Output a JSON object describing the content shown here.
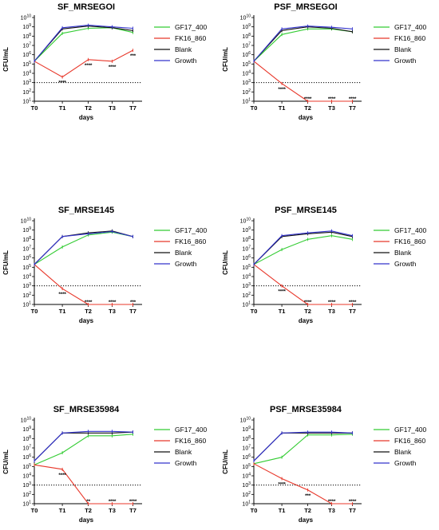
{
  "chart_data": [
    {
      "type": "line",
      "title": "SF_MRSEGOI",
      "xlabel": "days",
      "ylabel": "CFU/mL",
      "categories": [
        "T0",
        "T1",
        "T2",
        "T3",
        "T7"
      ],
      "y_scale": "log",
      "ylim": [
        10,
        10000000000
      ],
      "y_ticks": [
        10,
        100,
        1000,
        10000,
        100000,
        1000000,
        10000000,
        100000000,
        1000000000,
        10000000000
      ],
      "y_tick_exponents": [
        "1",
        "2",
        "3",
        "4",
        "5",
        "6",
        "7",
        "8",
        "9",
        "10"
      ],
      "threshold_line": 1000,
      "series": [
        {
          "name": "GF17_400",
          "color": "#33cc33",
          "values": [
            200000,
            200000000,
            700000000,
            800000000,
            250000000
          ]
        },
        {
          "name": "FK16_860",
          "color": "#e8372a",
          "values": [
            200000,
            4000,
            300000,
            200000,
            3000000
          ]
        },
        {
          "name": "Blank",
          "color": "#111111",
          "values": [
            200000,
            600000000,
            1200000000,
            800000000,
            400000000
          ]
        },
        {
          "name": "Growth",
          "color": "#3333cc",
          "values": [
            200000,
            800000000,
            1500000000,
            1000000000,
            700000000
          ]
        }
      ],
      "annotations": [
        {
          "category": "T1",
          "text": "****"
        },
        {
          "category": "T2",
          "text": "****"
        },
        {
          "category": "T3",
          "text": "****"
        },
        {
          "category": "T7",
          "text": "***"
        }
      ]
    },
    {
      "type": "line",
      "title": "PSF_MRSEGOI",
      "xlabel": "days",
      "ylabel": "CFU/mL",
      "categories": [
        "T0",
        "T1",
        "T2",
        "T3",
        "T7"
      ],
      "y_scale": "log",
      "ylim": [
        10,
        10000000000
      ],
      "y_ticks": [
        10,
        100,
        1000,
        10000,
        100000,
        1000000,
        10000000,
        100000000,
        1000000000,
        10000000000
      ],
      "y_tick_exponents": [
        "1",
        "2",
        "3",
        "4",
        "5",
        "6",
        "7",
        "8",
        "9",
        "10"
      ],
      "threshold_line": 1000,
      "series": [
        {
          "name": "GF17_400",
          "color": "#33cc33",
          "values": [
            200000,
            150000000,
            600000000,
            600000000,
            300000000
          ]
        },
        {
          "name": "FK16_860",
          "color": "#e8372a",
          "values": [
            200000,
            800,
            10,
            10,
            10
          ]
        },
        {
          "name": "Blank",
          "color": "#111111",
          "values": [
            200000,
            400000000,
            1000000000,
            700000000,
            300000000
          ]
        },
        {
          "name": "Growth",
          "color": "#3333cc",
          "values": [
            200000,
            600000000,
            1200000000,
            900000000,
            600000000
          ]
        }
      ],
      "annotations": [
        {
          "category": "T1",
          "text": "****"
        },
        {
          "category": "T2",
          "text": "****"
        },
        {
          "category": "T3",
          "text": "****"
        },
        {
          "category": "T7",
          "text": "****"
        }
      ]
    },
    {
      "type": "line",
      "title": "SF_MRSE145",
      "xlabel": "days",
      "ylabel": "CFU/mL",
      "categories": [
        "T0",
        "T1",
        "T2",
        "T3",
        "T7"
      ],
      "y_scale": "log",
      "ylim": [
        10,
        10000000000
      ],
      "y_ticks": [
        10,
        100,
        1000,
        10000,
        100000,
        1000000,
        10000000,
        100000000,
        1000000000,
        10000000000
      ],
      "y_tick_exponents": [
        "1",
        "2",
        "3",
        "4",
        "5",
        "6",
        "7",
        "8",
        "9",
        "10"
      ],
      "threshold_line": 1000,
      "series": [
        {
          "name": "GF17_400",
          "color": "#33cc33",
          "values": [
            200000,
            15000000,
            300000000,
            600000000,
            200000000
          ]
        },
        {
          "name": "FK16_860",
          "color": "#e8372a",
          "values": [
            200000,
            500,
            10,
            10,
            10
          ]
        },
        {
          "name": "Blank",
          "color": "#111111",
          "values": [
            200000,
            200000000,
            500000000,
            800000000,
            200000000
          ]
        },
        {
          "name": "Growth",
          "color": "#3333cc",
          "values": [
            200000,
            200000000,
            400000000,
            700000000,
            200000000
          ]
        }
      ],
      "annotations": [
        {
          "category": "T1",
          "text": "****"
        },
        {
          "category": "T2",
          "text": "****"
        },
        {
          "category": "T3",
          "text": "****"
        },
        {
          "category": "T7",
          "text": "***"
        }
      ]
    },
    {
      "type": "line",
      "title": "PSF_MRSE145",
      "xlabel": "days",
      "ylabel": "CFU/mL",
      "categories": [
        "T0",
        "T1",
        "T2",
        "T3",
        "T7"
      ],
      "y_scale": "log",
      "ylim": [
        10,
        10000000000
      ],
      "y_ticks": [
        10,
        100,
        1000,
        10000,
        100000,
        1000000,
        10000000,
        100000000,
        1000000000,
        10000000000
      ],
      "y_tick_exponents": [
        "1",
        "2",
        "3",
        "4",
        "5",
        "6",
        "7",
        "8",
        "9",
        "10"
      ],
      "threshold_line": 1000,
      "series": [
        {
          "name": "GF17_400",
          "color": "#33cc33",
          "values": [
            200000,
            8000000,
            100000000,
            250000000,
            100000000
          ]
        },
        {
          "name": "FK16_860",
          "color": "#e8372a",
          "values": [
            200000,
            1000,
            10,
            10,
            10
          ]
        },
        {
          "name": "Blank",
          "color": "#111111",
          "values": [
            200000,
            200000000,
            400000000,
            600000000,
            200000000
          ]
        },
        {
          "name": "Growth",
          "color": "#3333cc",
          "values": [
            200000,
            250000000,
            500000000,
            800000000,
            250000000
          ]
        }
      ],
      "annotations": [
        {
          "category": "T1",
          "text": "****"
        },
        {
          "category": "T2",
          "text": "****"
        },
        {
          "category": "T3",
          "text": "****"
        },
        {
          "category": "T7",
          "text": "****"
        }
      ]
    },
    {
      "type": "line",
      "title": "SF_MRSE35984",
      "xlabel": "days",
      "ylabel": "CFU/mL",
      "categories": [
        "T0",
        "T1",
        "T2",
        "T3",
        "T7"
      ],
      "y_scale": "log",
      "ylim": [
        10,
        10000000000
      ],
      "y_ticks": [
        10,
        100,
        1000,
        10000,
        100000,
        1000000,
        10000000,
        100000000,
        1000000000,
        10000000000
      ],
      "y_tick_exponents": [
        "1",
        "2",
        "3",
        "4",
        "5",
        "6",
        "7",
        "8",
        "9",
        "10"
      ],
      "threshold_line": 1000,
      "series": [
        {
          "name": "GF17_400",
          "color": "#33cc33",
          "values": [
            150000,
            3000000,
            200000000,
            200000000,
            300000000
          ]
        },
        {
          "name": "FK16_860",
          "color": "#e8372a",
          "values": [
            150000,
            50000,
            10,
            10,
            10
          ]
        },
        {
          "name": "Blank",
          "color": "#111111",
          "values": [
            400000,
            400000000,
            400000000,
            400000000,
            500000000
          ]
        },
        {
          "name": "Growth",
          "color": "#3333cc",
          "values": [
            400000,
            400000000,
            600000000,
            600000000,
            500000000
          ]
        }
      ],
      "annotations": [
        {
          "category": "T1",
          "text": "****"
        },
        {
          "category": "T2",
          "text": "**"
        },
        {
          "category": "T3",
          "text": "****"
        },
        {
          "category": "T7",
          "text": "****"
        }
      ]
    },
    {
      "type": "line",
      "title": "PSF_MRSE35984",
      "xlabel": "days",
      "ylabel": "CFU/mL",
      "categories": [
        "T0",
        "T1",
        "T2",
        "T3",
        "T7"
      ],
      "y_scale": "log",
      "ylim": [
        10,
        10000000000
      ],
      "y_ticks": [
        10,
        100,
        1000,
        10000,
        100000,
        1000000,
        10000000,
        100000000,
        1000000000,
        10000000000
      ],
      "y_tick_exponents": [
        "1",
        "2",
        "3",
        "4",
        "5",
        "6",
        "7",
        "8",
        "9",
        "10"
      ],
      "threshold_line": 1000,
      "series": [
        {
          "name": "GF17_400",
          "color": "#33cc33",
          "values": [
            200000,
            1000000,
            250000000,
            250000000,
            300000000
          ]
        },
        {
          "name": "FK16_860",
          "color": "#e8372a",
          "values": [
            200000,
            5000,
            300,
            10,
            10
          ]
        },
        {
          "name": "Blank",
          "color": "#111111",
          "values": [
            400000,
            400000000,
            400000000,
            400000000,
            400000000
          ]
        },
        {
          "name": "Growth",
          "color": "#3333cc",
          "values": [
            400000,
            400000000,
            500000000,
            500000000,
            400000000
          ]
        }
      ],
      "annotations": [
        {
          "category": "T1",
          "text": "****"
        },
        {
          "category": "T2",
          "text": "***"
        },
        {
          "category": "T3",
          "text": "****"
        },
        {
          "category": "T7",
          "text": "****"
        }
      ]
    }
  ]
}
